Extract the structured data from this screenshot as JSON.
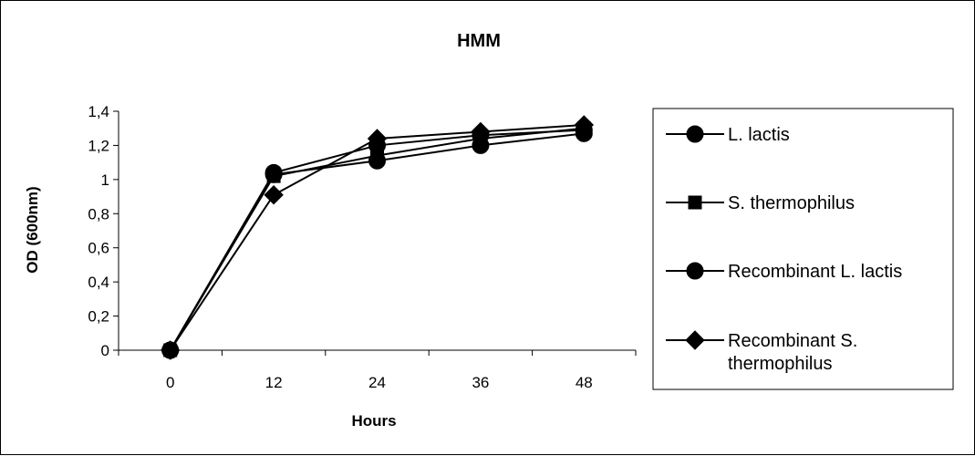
{
  "chart_data": {
    "type": "line",
    "title": "HMM",
    "xlabel": "Hours",
    "ylabel": "OD (600nm)",
    "categories": [
      "0",
      "12",
      "24",
      "36",
      "48"
    ],
    "y_ticks": [
      "0",
      "0,2",
      "0,4",
      "0,6",
      "0,8",
      "1",
      "1,2",
      "1,4"
    ],
    "ylim": [
      0,
      1.4
    ],
    "grid": false,
    "legend_position": "right",
    "series": [
      {
        "name": "L. lactis",
        "marker": "circle",
        "color": "#000000",
        "values": [
          0,
          1.03,
          1.11,
          1.2,
          1.27
        ]
      },
      {
        "name": "S. thermophilus",
        "marker": "square",
        "color": "#000000",
        "values": [
          0,
          1.02,
          1.14,
          1.24,
          1.3
        ]
      },
      {
        "name": "Recombinant L. lactis",
        "marker": "circle",
        "color": "#000000",
        "values": [
          0,
          1.04,
          1.2,
          1.26,
          1.29
        ]
      },
      {
        "name": "Recombinant S. thermophilus",
        "marker": "diamond",
        "color": "#000000",
        "values": [
          0,
          0.91,
          1.24,
          1.28,
          1.32
        ]
      }
    ]
  }
}
